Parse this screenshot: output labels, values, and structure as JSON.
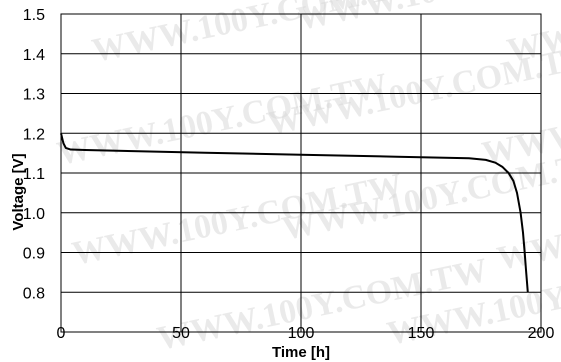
{
  "chart_data": {
    "type": "line",
    "title": "",
    "xlabel": "Time [h]",
    "ylabel": "Voltage [V]",
    "xlim": [
      0,
      200
    ],
    "ylim": [
      0.7,
      1.5
    ],
    "x_ticks": [
      0,
      50,
      100,
      150,
      200
    ],
    "x_tick_labels": [
      "0",
      "50",
      "100",
      "150",
      "200"
    ],
    "y_ticks": [
      0.8,
      0.9,
      1.0,
      1.1,
      1.2,
      1.3,
      1.4,
      1.5
    ],
    "y_tick_labels": [
      "0.8",
      "0.9",
      "1.0",
      "1.1",
      "1.2",
      "1.3",
      "1.4",
      "1.5"
    ],
    "grid": true,
    "line_color": "#000000",
    "watermark_text": "WWW.100Y.COM.TW",
    "series": [
      {
        "x": [
          0,
          1,
          2,
          4,
          10,
          30,
          60,
          100,
          140,
          170,
          177,
          181,
          184,
          186.5,
          188.5,
          190,
          191.5,
          192.5,
          193.2,
          193.7,
          194.1,
          194.5
        ],
        "y": [
          1.2,
          1.175,
          1.163,
          1.159,
          1.158,
          1.155,
          1.151,
          1.146,
          1.141,
          1.137,
          1.133,
          1.126,
          1.115,
          1.1,
          1.08,
          1.05,
          1.0,
          0.95,
          0.9,
          0.86,
          0.83,
          0.8
        ]
      }
    ]
  }
}
